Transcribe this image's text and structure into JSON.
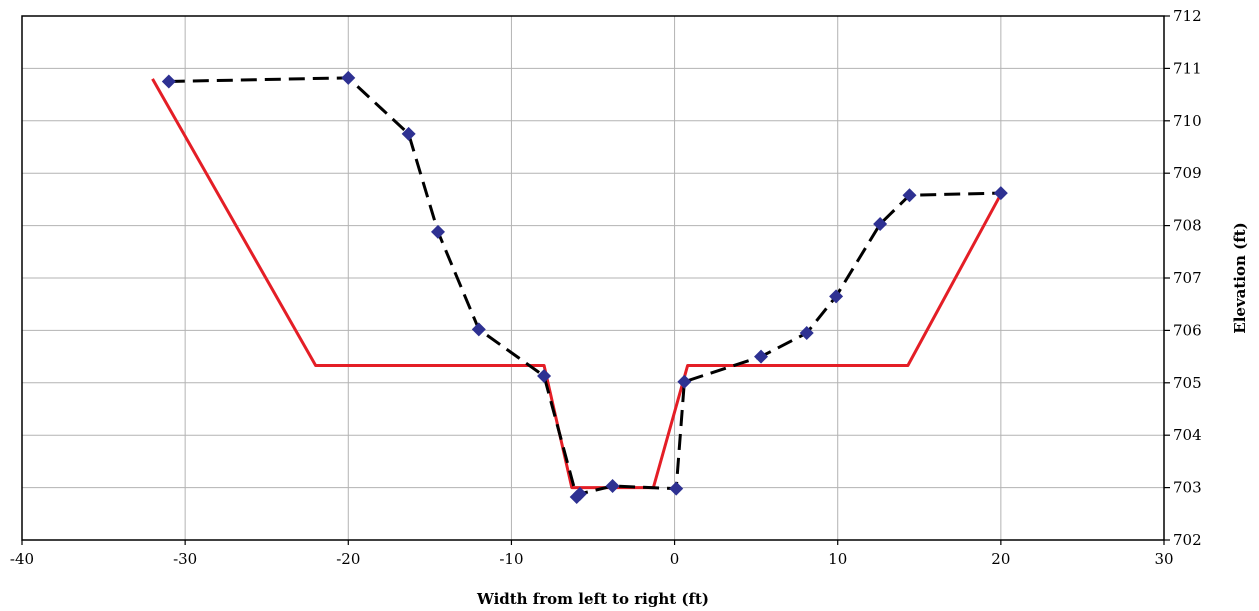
{
  "chart_data": {
    "type": "line",
    "title": "",
    "xlabel": "Width from left to right (ft)",
    "ylabel": "Elevation (ft)",
    "xlim": [
      -40,
      30
    ],
    "ylim": [
      702,
      712
    ],
    "x_ticks": [
      "-40",
      "-30",
      "-20",
      "-10",
      "0",
      "10",
      "20",
      "30"
    ],
    "y_ticks": [
      "702",
      "703",
      "704",
      "705",
      "706",
      "707",
      "708",
      "709",
      "710",
      "711",
      "712"
    ],
    "y_axis_side": "right",
    "grid": true,
    "legend": "none",
    "series": [
      {
        "style": "dashed-black-with-diamond-markers",
        "line_color": "#000000",
        "marker_color": "#2e3192",
        "x": [
          -31.0,
          -20.0,
          -16.3,
          -14.5,
          -12.0,
          -8.0,
          -6.0,
          -5.8,
          -3.8,
          0.1,
          0.6,
          5.3,
          8.1,
          9.9,
          12.6,
          14.4,
          20.0
        ],
        "y": [
          710.75,
          710.82,
          709.75,
          707.88,
          706.02,
          705.13,
          702.82,
          702.88,
          703.03,
          702.98,
          705.02,
          705.5,
          705.95,
          706.65,
          708.03,
          708.58,
          708.62
        ]
      },
      {
        "style": "solid-red",
        "line_color": "#e41e26",
        "x": [
          -32.0,
          -22.0,
          -8.0,
          -6.3,
          -1.3,
          0.8,
          14.3,
          20.0
        ],
        "y": [
          710.8,
          705.33,
          705.33,
          703.0,
          703.0,
          705.33,
          705.33,
          708.6
        ]
      }
    ]
  }
}
